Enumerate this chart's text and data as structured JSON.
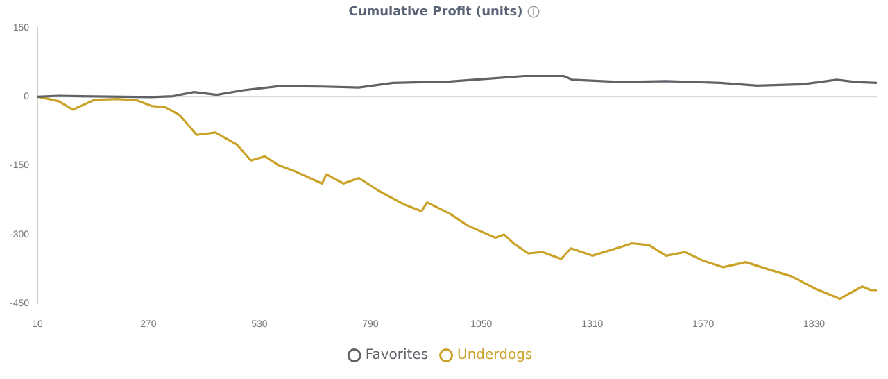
{
  "chart_data": {
    "type": "line",
    "title": "Cumulative Profit (units)",
    "series": [
      {
        "name": "Favorites",
        "color": "#5f6368",
        "x": [
          10,
          60,
          110,
          210,
          277,
          327,
          377,
          430,
          493,
          577,
          677,
          763,
          843,
          977,
          1077,
          1150,
          1243,
          1263,
          1377,
          1483,
          1610,
          1697,
          1803,
          1883,
          1927,
          1977
        ],
        "values": [
          0,
          2,
          1,
          0,
          -1,
          1,
          10,
          4,
          14,
          23,
          22,
          20,
          30,
          33,
          40,
          45,
          45,
          37,
          32,
          34,
          30,
          24,
          27,
          37,
          32,
          30
        ]
      },
      {
        "name": "Underdogs",
        "color": "#c9a227",
        "x": [
          10,
          37,
          60,
          93,
          143,
          197,
          243,
          277,
          310,
          343,
          383,
          427,
          477,
          510,
          543,
          577,
          610,
          677,
          687,
          727,
          763,
          810,
          870,
          910,
          923,
          977,
          1017,
          1083,
          1103,
          1127,
          1160,
          1193,
          1237,
          1260,
          1310,
          1377,
          1403,
          1443,
          1483,
          1527,
          1570,
          1617,
          1670,
          1727,
          1777,
          1833,
          1890,
          1927,
          1943,
          1963,
          1977
        ],
        "values": [
          0,
          -5,
          -10,
          -28,
          -7,
          -5,
          -8,
          -20,
          -23,
          -40,
          -83,
          -78,
          -104,
          -139,
          -130,
          -150,
          -161,
          -189,
          -169,
          -189,
          -177,
          -205,
          -235,
          -249,
          -230,
          -255,
          -280,
          -307,
          -300,
          -320,
          -341,
          -338,
          -353,
          -330,
          -346,
          -327,
          -319,
          -323,
          -346,
          -338,
          -357,
          -371,
          -360,
          -377,
          -391,
          -418,
          -440,
          -421,
          -413,
          -421,
          -421
        ]
      }
    ],
    "xlim": [
      10,
      1977
    ],
    "xticks": [
      10,
      270,
      530,
      790,
      1050,
      1310,
      1570,
      1830
    ],
    "ylim": [
      -450,
      150
    ],
    "yticks": [
      -450,
      -300,
      -150,
      0,
      150
    ],
    "ref_lines": [
      {
        "axis": "y",
        "value": 0,
        "color": "#d5dde0"
      }
    ],
    "grid": false,
    "legend": "bottom",
    "marker": "none",
    "line_style": "solid"
  }
}
